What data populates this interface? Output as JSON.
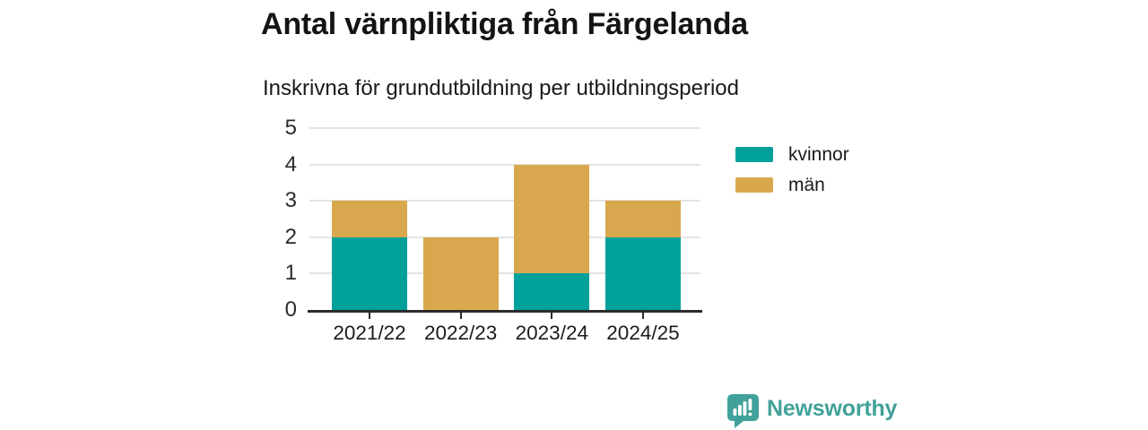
{
  "title": "Antal värnpliktiga från Färgelanda",
  "subtitle": "Inskrivna för grundutbildning per utbildningsperiod",
  "chart_data": {
    "type": "bar",
    "stacked": true,
    "title": "Antal värnpliktiga från Färgelanda",
    "subtitle": "Inskrivna för grundutbildning per utbildningsperiod",
    "categories": [
      "2021/22",
      "2022/23",
      "2023/24",
      "2024/25"
    ],
    "series": [
      {
        "name": "kvinnor",
        "color": "#00a19a",
        "values": [
          2,
          0,
          1,
          2
        ]
      },
      {
        "name": "män",
        "color": "#d9a84e",
        "values": [
          1,
          2,
          3,
          1
        ]
      }
    ],
    "totals": [
      3,
      2,
      4,
      3
    ],
    "ylim": [
      0,
      5
    ],
    "yticks": [
      0,
      1,
      2,
      3,
      4,
      5
    ],
    "xlabel": "",
    "ylabel": "",
    "grid": true,
    "legend_position": "right"
  },
  "colors": {
    "kvinnor": "#00a19a",
    "man": "#d9a84e",
    "axis": "#2b2b2b",
    "gridline": "#e3e3e3",
    "brand": "#42a19a"
  },
  "branding": {
    "logo_text": "Newsworthy",
    "logo_icon": "speech-bubble-bar-chart-icon"
  }
}
